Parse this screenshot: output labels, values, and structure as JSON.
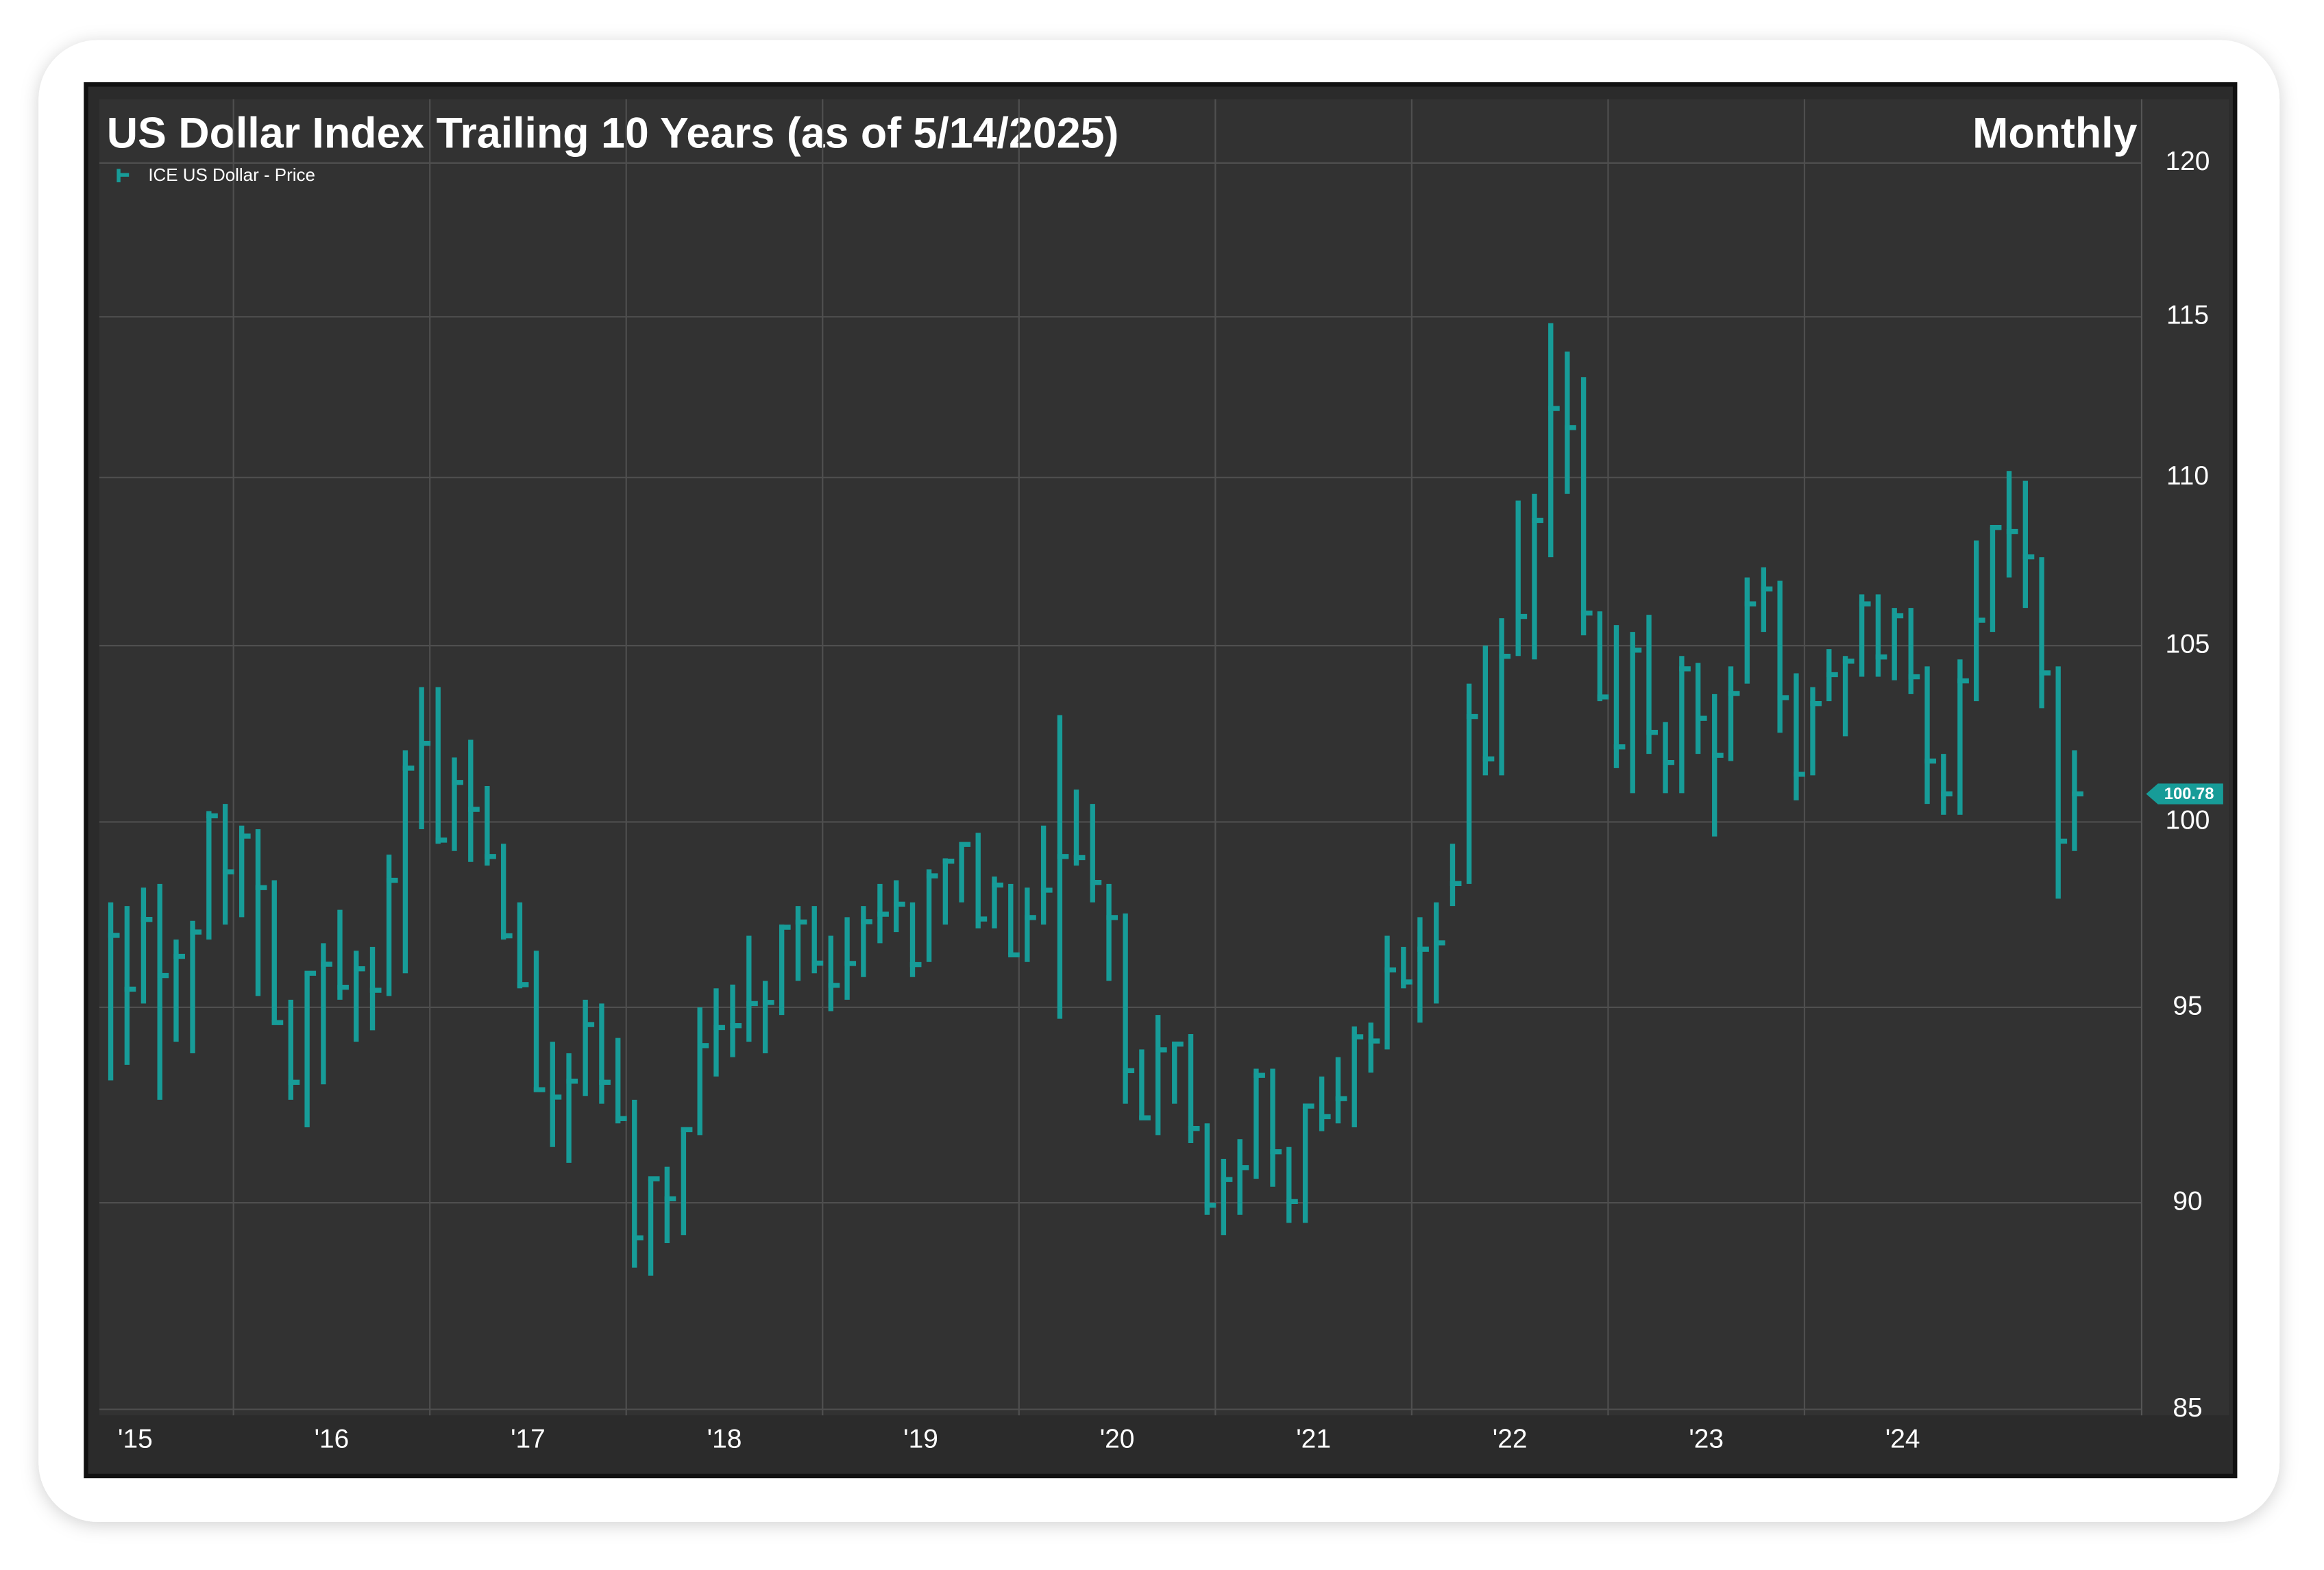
{
  "chart_data": {
    "type": "hlc",
    "title": "US Dollar Index Trailing 10 Years (as of 5/14/2025)",
    "frequency": "Monthly",
    "log_scale": true,
    "grid": true,
    "x": [
      2015.375,
      2015.458,
      2015.542,
      2015.625,
      2015.708,
      2015.792,
      2015.875,
      2015.958,
      2016.042,
      2016.125,
      2016.208,
      2016.292,
      2016.375,
      2016.458,
      2016.542,
      2016.625,
      2016.708,
      2016.792,
      2016.875,
      2016.958,
      2017.042,
      2017.125,
      2017.208,
      2017.292,
      2017.375,
      2017.458,
      2017.542,
      2017.625,
      2017.708,
      2017.792,
      2017.875,
      2017.958,
      2018.042,
      2018.125,
      2018.208,
      2018.292,
      2018.375,
      2018.458,
      2018.542,
      2018.625,
      2018.708,
      2018.792,
      2018.875,
      2018.958,
      2019.042,
      2019.125,
      2019.208,
      2019.292,
      2019.375,
      2019.458,
      2019.542,
      2019.625,
      2019.708,
      2019.792,
      2019.875,
      2019.958,
      2020.042,
      2020.125,
      2020.208,
      2020.292,
      2020.375,
      2020.458,
      2020.542,
      2020.625,
      2020.708,
      2020.792,
      2020.875,
      2020.958,
      2021.042,
      2021.125,
      2021.208,
      2021.292,
      2021.375,
      2021.458,
      2021.542,
      2021.625,
      2021.708,
      2021.792,
      2021.875,
      2021.958,
      2022.042,
      2022.125,
      2022.208,
      2022.292,
      2022.375,
      2022.458,
      2022.542,
      2022.625,
      2022.708,
      2022.792,
      2022.875,
      2022.958,
      2023.042,
      2023.125,
      2023.208,
      2023.292,
      2023.375,
      2023.458,
      2023.542,
      2023.625,
      2023.708,
      2023.792,
      2023.875,
      2023.958,
      2024.042,
      2024.125,
      2024.208,
      2024.292,
      2024.375,
      2024.458,
      2024.542,
      2024.625,
      2024.708,
      2024.792,
      2024.875,
      2024.958,
      2025.042,
      2025.125,
      2025.208,
      2025.292,
      2025.375
    ],
    "series": [
      {
        "name": "ICE US Dollar - Price",
        "color": "#179c98",
        "high": [
          97.8,
          97.7,
          98.2,
          98.3,
          96.8,
          97.3,
          100.3,
          100.5,
          99.9,
          99.8,
          98.4,
          95.2,
          95.9,
          96.7,
          97.6,
          96.5,
          96.6,
          99.1,
          102.0,
          103.8,
          103.8,
          101.8,
          102.3,
          101.0,
          99.4,
          97.8,
          96.5,
          94.1,
          93.8,
          95.2,
          95.1,
          94.2,
          92.6,
          90.6,
          90.9,
          91.9,
          95.0,
          95.5,
          95.6,
          96.9,
          95.7,
          97.2,
          97.7,
          97.7,
          96.9,
          97.4,
          97.7,
          98.3,
          98.4,
          97.8,
          98.7,
          99.0,
          99.4,
          99.7,
          98.5,
          98.3,
          98.2,
          99.9,
          103.0,
          100.9,
          100.5,
          98.3,
          97.5,
          93.9,
          94.8,
          94.1,
          94.3,
          92.0,
          91.1,
          91.6,
          93.4,
          93.4,
          91.4,
          92.4,
          93.2,
          93.7,
          94.5,
          94.6,
          96.9,
          96.6,
          97.4,
          97.8,
          99.4,
          103.9,
          105.0,
          105.8,
          109.3,
          109.5,
          114.8,
          113.9,
          113.1,
          106.0,
          105.6,
          105.4,
          105.9,
          102.8,
          104.7,
          104.5,
          103.6,
          104.4,
          107.0,
          107.3,
          106.9,
          104.2,
          103.8,
          104.9,
          104.7,
          106.5,
          106.5,
          106.1,
          106.1,
          104.4,
          101.9,
          104.6,
          108.1,
          108.5,
          110.2,
          109.9,
          107.6,
          104.4,
          102.0
        ],
        "low": [
          93.1,
          93.5,
          95.1,
          92.6,
          94.1,
          93.8,
          96.8,
          97.2,
          97.4,
          95.3,
          94.6,
          92.6,
          91.9,
          93.0,
          95.2,
          94.1,
          94.4,
          95.3,
          95.9,
          99.8,
          99.4,
          99.2,
          98.9,
          98.8,
          96.8,
          95.5,
          92.8,
          91.4,
          91.0,
          92.7,
          92.5,
          92.0,
          88.4,
          88.2,
          89.0,
          89.2,
          91.7,
          93.2,
          93.7,
          94.1,
          93.8,
          94.8,
          95.7,
          95.9,
          94.9,
          95.2,
          95.8,
          96.7,
          97.0,
          95.8,
          96.2,
          97.2,
          97.8,
          97.1,
          97.1,
          96.4,
          96.2,
          97.2,
          94.7,
          98.8,
          97.8,
          95.7,
          92.5,
          92.1,
          91.7,
          92.5,
          91.5,
          89.7,
          89.2,
          89.7,
          90.6,
          90.4,
          89.5,
          89.5,
          91.8,
          92.0,
          91.9,
          93.3,
          93.9,
          95.5,
          94.6,
          95.1,
          97.7,
          98.3,
          101.3,
          101.3,
          104.7,
          104.6,
          107.6,
          109.5,
          105.3,
          103.4,
          101.5,
          100.8,
          101.9,
          100.8,
          100.8,
          101.9,
          99.6,
          101.7,
          103.9,
          105.4,
          102.5,
          100.6,
          101.3,
          103.4,
          102.4,
          104.1,
          104.1,
          104.0,
          103.6,
          100.5,
          100.2,
          100.2,
          103.4,
          105.4,
          107.0,
          106.1,
          103.2,
          97.9,
          99.2
        ],
        "close": [
          96.91,
          95.48,
          97.34,
          95.84,
          96.35,
          97.0,
          100.17,
          98.63,
          99.61,
          98.2,
          94.6,
          93.05,
          95.9,
          96.14,
          95.53,
          96.02,
          95.45,
          98.4,
          101.5,
          102.2,
          99.5,
          101.1,
          100.35,
          99.05,
          96.9,
          95.6,
          92.86,
          92.67,
          93.08,
          94.55,
          93.05,
          92.12,
          89.13,
          90.6,
          90.1,
          91.84,
          94.0,
          94.47,
          94.52,
          95.1,
          95.13,
          97.13,
          97.27,
          96.17,
          95.58,
          96.16,
          97.28,
          97.48,
          97.75,
          96.13,
          98.52,
          98.92,
          99.38,
          97.35,
          98.27,
          96.39,
          97.39,
          98.13,
          99.05,
          99.02,
          98.34,
          97.39,
          93.35,
          92.14,
          93.89,
          94.04,
          91.87,
          89.94,
          90.58,
          90.88,
          93.23,
          91.28,
          90.03,
          92.44,
          92.17,
          92.63,
          94.23,
          94.12,
          95.99,
          95.67,
          96.54,
          96.71,
          98.31,
          102.96,
          101.76,
          104.69,
          105.85,
          108.7,
          112.12,
          111.53,
          105.95,
          103.52,
          102.1,
          104.87,
          102.51,
          101.66,
          104.33,
          102.91,
          101.86,
          103.62,
          106.22,
          106.66,
          103.5,
          101.33,
          103.33,
          104.16,
          104.55,
          106.22,
          104.67,
          105.87,
          104.1,
          101.7,
          100.78,
          103.98,
          105.74,
          108.49,
          108.37,
          107.61,
          104.21,
          99.47,
          100.78
        ]
      }
    ],
    "xlim": [
      2015.317,
      2025.717
    ],
    "xticks": [
      {
        "value": 2015,
        "label": "'15"
      },
      {
        "value": 2016,
        "label": "'16"
      },
      {
        "value": 2017,
        "label": "'17"
      },
      {
        "value": 2018,
        "label": "'18"
      },
      {
        "value": 2019,
        "label": "'19"
      },
      {
        "value": 2020,
        "label": "'20"
      },
      {
        "value": 2021,
        "label": "'21"
      },
      {
        "value": 2022,
        "label": "'22"
      },
      {
        "value": 2023,
        "label": "'23"
      },
      {
        "value": 2024,
        "label": "'24"
      }
    ],
    "ylim": [
      85,
      120
    ],
    "yticks": [
      85,
      90,
      95,
      100,
      105,
      110,
      115,
      120
    ]
  }
}
